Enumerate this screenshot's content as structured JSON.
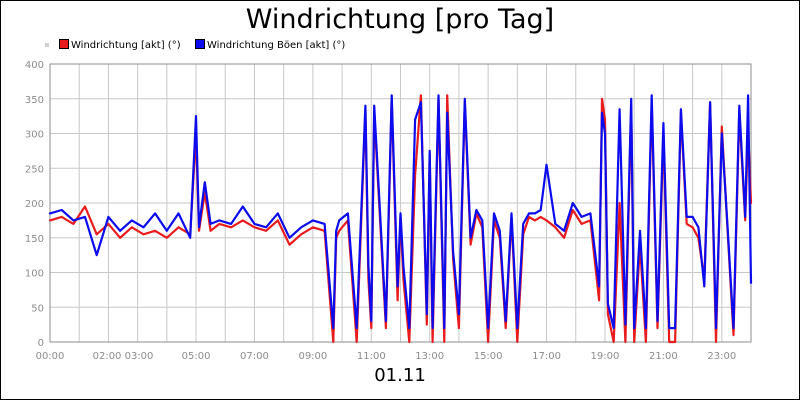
{
  "chart_data": {
    "type": "line",
    "title": "Windrichtung [pro Tag]",
    "xlabel": "01.11",
    "ylabel": "",
    "ylim": [
      0,
      400
    ],
    "yticks": [
      0,
      50,
      100,
      150,
      200,
      250,
      300,
      350,
      400
    ],
    "xlim": [
      0,
      24
    ],
    "x_tick_labels": [
      "00:00",
      "02:00 03:00",
      "05:00",
      "07:00",
      "09:00",
      "11:00",
      "13:00",
      "15:00",
      "17:00",
      "19:00",
      "21:00",
      "23:00"
    ],
    "x_tick_hours": [
      0,
      2.5,
      5,
      7,
      9,
      11,
      13,
      15,
      17,
      19,
      21,
      23
    ],
    "grid": true,
    "legend_position": "top-left",
    "series": [
      {
        "name": "Windrichtung [akt] (°)",
        "color": "#e81c1c",
        "x": [
          0,
          0.4,
          0.8,
          1.2,
          1.6,
          2.0,
          2.4,
          2.8,
          3.2,
          3.6,
          4.0,
          4.4,
          4.8,
          5.0,
          5.1,
          5.3,
          5.5,
          5.8,
          6.2,
          6.6,
          7.0,
          7.4,
          7.8,
          8.2,
          8.6,
          9.0,
          9.4,
          9.7,
          9.8,
          9.9,
          10.2,
          10.5,
          10.8,
          10.9,
          11.0,
          11.1,
          11.3,
          11.5,
          11.7,
          11.9,
          12.0,
          12.1,
          12.3,
          12.5,
          12.7,
          12.9,
          13.0,
          13.1,
          13.3,
          13.5,
          13.6,
          13.8,
          14.0,
          14.2,
          14.4,
          14.6,
          14.8,
          15.0,
          15.2,
          15.4,
          15.6,
          15.8,
          16.0,
          16.2,
          16.4,
          16.6,
          16.8,
          17.0,
          17.3,
          17.6,
          17.9,
          18.2,
          18.5,
          18.8,
          18.9,
          19.0,
          19.1,
          19.3,
          19.5,
          19.7,
          19.9,
          20.0,
          20.2,
          20.4,
          20.6,
          20.8,
          21.0,
          21.2,
          21.4,
          21.6,
          21.8,
          22.0,
          22.2,
          22.4,
          22.6,
          22.8,
          23.0,
          23.2,
          23.4,
          23.6,
          23.8,
          23.9,
          24.0
        ],
        "values": [
          175,
          180,
          170,
          195,
          155,
          170,
          150,
          165,
          155,
          160,
          150,
          165,
          155,
          300,
          160,
          215,
          160,
          170,
          165,
          175,
          165,
          160,
          175,
          140,
          155,
          165,
          160,
          0,
          150,
          160,
          175,
          0,
          335,
          90,
          20,
          330,
          175,
          20,
          350,
          60,
          180,
          90,
          0,
          240,
          355,
          25,
          270,
          0,
          350,
          0,
          355,
          120,
          20,
          345,
          140,
          185,
          165,
          0,
          175,
          150,
          20,
          180,
          0,
          155,
          180,
          175,
          180,
          175,
          165,
          150,
          190,
          170,
          175,
          60,
          350,
          320,
          40,
          0,
          200,
          0,
          340,
          0,
          140,
          0,
          345,
          20,
          300,
          0,
          0,
          330,
          170,
          165,
          150,
          90,
          345,
          0,
          310,
          160,
          10,
          330,
          175,
          305,
          200
        ]
      },
      {
        "name": "Windrichtung Böen [akt] (°)",
        "color": "#0b0bee",
        "x": [
          0,
          0.4,
          0.8,
          1.2,
          1.6,
          2.0,
          2.4,
          2.8,
          3.2,
          3.6,
          4.0,
          4.4,
          4.8,
          5.0,
          5.1,
          5.3,
          5.5,
          5.8,
          6.2,
          6.6,
          7.0,
          7.4,
          7.8,
          8.2,
          8.6,
          9.0,
          9.4,
          9.7,
          9.8,
          9.9,
          10.2,
          10.5,
          10.8,
          10.9,
          11.0,
          11.1,
          11.3,
          11.5,
          11.7,
          11.9,
          12.0,
          12.1,
          12.3,
          12.5,
          12.7,
          12.9,
          13.0,
          13.1,
          13.3,
          13.5,
          13.6,
          13.8,
          14.0,
          14.2,
          14.4,
          14.6,
          14.8,
          15.0,
          15.2,
          15.4,
          15.6,
          15.8,
          16.0,
          16.2,
          16.4,
          16.6,
          16.8,
          17.0,
          17.3,
          17.6,
          17.9,
          18.2,
          18.5,
          18.8,
          18.9,
          19.0,
          19.1,
          19.3,
          19.5,
          19.7,
          19.9,
          20.0,
          20.2,
          20.4,
          20.6,
          20.8,
          21.0,
          21.2,
          21.4,
          21.6,
          21.8,
          22.0,
          22.2,
          22.4,
          22.6,
          22.8,
          23.0,
          23.2,
          23.4,
          23.6,
          23.8,
          23.9,
          24.0
        ],
        "values": [
          185,
          190,
          175,
          180,
          125,
          180,
          160,
          175,
          165,
          185,
          160,
          185,
          150,
          325,
          165,
          230,
          170,
          175,
          170,
          195,
          170,
          165,
          185,
          150,
          165,
          175,
          170,
          20,
          160,
          175,
          185,
          20,
          340,
          110,
          30,
          340,
          185,
          30,
          355,
          80,
          185,
          110,
          20,
          320,
          345,
          40,
          275,
          20,
          355,
          20,
          330,
          130,
          40,
          350,
          150,
          190,
          175,
          20,
          185,
          160,
          30,
          185,
          20,
          170,
          185,
          185,
          190,
          255,
          170,
          160,
          200,
          180,
          185,
          80,
          330,
          300,
          55,
          20,
          335,
          25,
          350,
          20,
          160,
          20,
          355,
          30,
          315,
          20,
          20,
          335,
          180,
          180,
          165,
          80,
          345,
          20,
          300,
          165,
          20,
          340,
          180,
          355,
          85
        ]
      }
    ]
  }
}
